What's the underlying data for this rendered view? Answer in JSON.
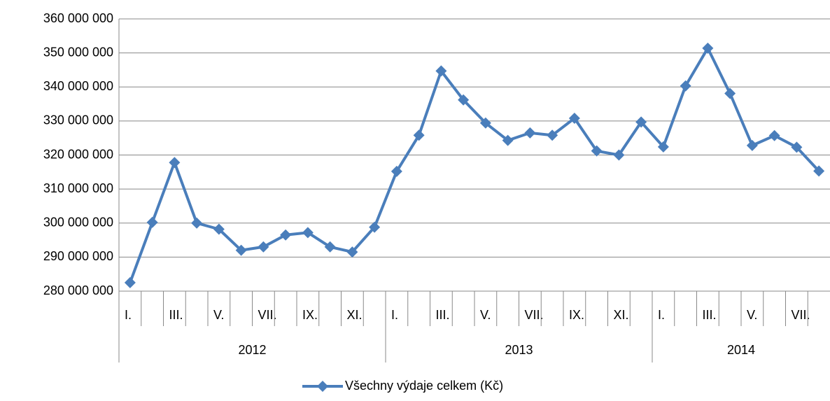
{
  "chart_data": {
    "type": "line",
    "categories": [
      "I.",
      null,
      "III.",
      null,
      "V.",
      null,
      "VII.",
      null,
      "IX.",
      null,
      "XI.",
      null,
      "I.",
      null,
      "III.",
      null,
      "V.",
      null,
      "VII.",
      null,
      "IX.",
      null,
      "XI.",
      null,
      "I.",
      null,
      "III.",
      null,
      "V.",
      null,
      "VII.",
      null
    ],
    "year_groups": [
      "2012",
      "2013",
      "2014"
    ],
    "series": [
      {
        "name": "Všechny výdaje celkem (Kč)",
        "color": "#4a7ebb",
        "values": [
          282500000,
          300200000,
          317800000,
          300000000,
          298200000,
          292000000,
          293000000,
          296500000,
          297200000,
          293000000,
          291500000,
          298800000,
          315200000,
          325800000,
          344700000,
          336200000,
          329400000,
          324300000,
          326500000,
          325800000,
          330800000,
          321200000,
          320000000,
          329700000,
          322400000,
          340300000,
          351400000,
          338100000,
          322800000,
          325700000,
          322300000,
          315300000
        ]
      }
    ],
    "ylim": [
      280000000,
      360000000
    ],
    "yticks": [
      {
        "value": 280000000,
        "label": "280 000 000"
      },
      {
        "value": 290000000,
        "label": "290 000 000"
      },
      {
        "value": 300000000,
        "label": "300 000 000"
      },
      {
        "value": 310000000,
        "label": "310 000 000"
      },
      {
        "value": 320000000,
        "label": "320 000 000"
      },
      {
        "value": 330000000,
        "label": "330 000 000"
      },
      {
        "value": 340000000,
        "label": "340 000 000"
      },
      {
        "value": 350000000,
        "label": "350 000 000"
      },
      {
        "value": 360000000,
        "label": "360 000 000"
      }
    ],
    "grid": true,
    "legend": "bottom"
  }
}
